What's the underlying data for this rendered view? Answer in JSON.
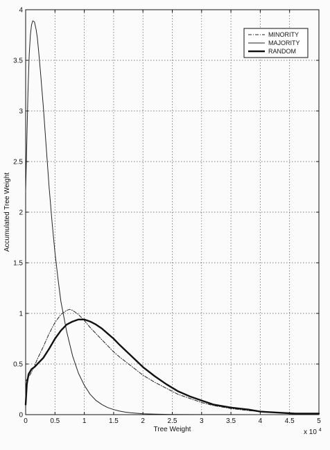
{
  "chart_data": {
    "type": "line",
    "title": "",
    "xlabel": "Tree Weight",
    "ylabel": "Accumulated Tree Weight",
    "x_multiplier": "x 10",
    "x_multiplier_exponent": "4",
    "xlim": [
      0,
      5
    ],
    "ylim": [
      0,
      4
    ],
    "grid": true,
    "legend_position": "top-right",
    "xticks": [
      "0",
      "0.5",
      "1",
      "1.5",
      "2",
      "2.5",
      "3",
      "3.5",
      "4",
      "4.5",
      "5"
    ],
    "yticks": [
      "0",
      "0.5",
      "1",
      "1.5",
      "2",
      "2.5",
      "3",
      "3.5",
      "4"
    ],
    "series": [
      {
        "name": "MINORITY",
        "style": "dash-dot",
        "color": "#222222",
        "x": [
          0,
          0.05,
          0.1,
          0.15,
          0.2,
          0.3,
          0.4,
          0.5,
          0.6,
          0.7,
          0.75,
          0.8,
          0.9,
          1.0,
          1.1,
          1.2,
          1.3,
          1.4,
          1.5,
          1.6,
          1.8,
          2.0,
          2.2,
          2.4,
          2.6,
          2.8,
          3.0,
          3.2,
          3.5,
          3.8,
          4.0,
          4.3,
          4.6,
          5.0
        ],
        "y": [
          0.33,
          0.37,
          0.42,
          0.48,
          0.55,
          0.67,
          0.8,
          0.91,
          0.99,
          1.03,
          1.04,
          1.03,
          0.99,
          0.93,
          0.86,
          0.8,
          0.74,
          0.68,
          0.62,
          0.57,
          0.48,
          0.39,
          0.32,
          0.26,
          0.2,
          0.16,
          0.12,
          0.09,
          0.06,
          0.04,
          0.03,
          0.02,
          0.01,
          0.01
        ]
      },
      {
        "name": "MAJORITY",
        "style": "thin-solid",
        "color": "#222222",
        "x": [
          0,
          0.02,
          0.04,
          0.06,
          0.08,
          0.1,
          0.12,
          0.15,
          0.18,
          0.2,
          0.22,
          0.25,
          0.3,
          0.35,
          0.4,
          0.45,
          0.5,
          0.55,
          0.6,
          0.7,
          0.8,
          0.9,
          1.0,
          1.1,
          1.2,
          1.3,
          1.4,
          1.5,
          1.6,
          1.7,
          1.8,
          2.0,
          2.2,
          2.5,
          3.0,
          3.5,
          4.0,
          5.0
        ],
        "y": [
          2.2,
          2.7,
          3.2,
          3.55,
          3.75,
          3.85,
          3.89,
          3.88,
          3.8,
          3.72,
          3.6,
          3.4,
          3.05,
          2.65,
          2.25,
          1.9,
          1.6,
          1.35,
          1.12,
          0.82,
          0.58,
          0.41,
          0.29,
          0.2,
          0.14,
          0.1,
          0.07,
          0.05,
          0.035,
          0.025,
          0.018,
          0.009,
          0.005,
          0.002,
          0.001,
          0.0005,
          0.0,
          0.0
        ]
      },
      {
        "name": "RANDOM",
        "style": "thick-solid",
        "color": "#111111",
        "x": [
          0,
          0.02,
          0.05,
          0.1,
          0.15,
          0.2,
          0.3,
          0.4,
          0.5,
          0.6,
          0.7,
          0.8,
          0.9,
          1.0,
          1.1,
          1.2,
          1.3,
          1.4,
          1.5,
          1.6,
          1.8,
          2.0,
          2.2,
          2.4,
          2.6,
          2.8,
          3.0,
          3.2,
          3.5,
          3.8,
          4.0,
          4.3,
          4.6,
          5.0
        ],
        "y": [
          0.1,
          0.3,
          0.4,
          0.45,
          0.47,
          0.5,
          0.56,
          0.65,
          0.75,
          0.83,
          0.89,
          0.92,
          0.94,
          0.94,
          0.92,
          0.89,
          0.85,
          0.8,
          0.75,
          0.69,
          0.58,
          0.47,
          0.38,
          0.3,
          0.23,
          0.18,
          0.14,
          0.1,
          0.07,
          0.05,
          0.03,
          0.02,
          0.01,
          0.01
        ]
      }
    ]
  }
}
